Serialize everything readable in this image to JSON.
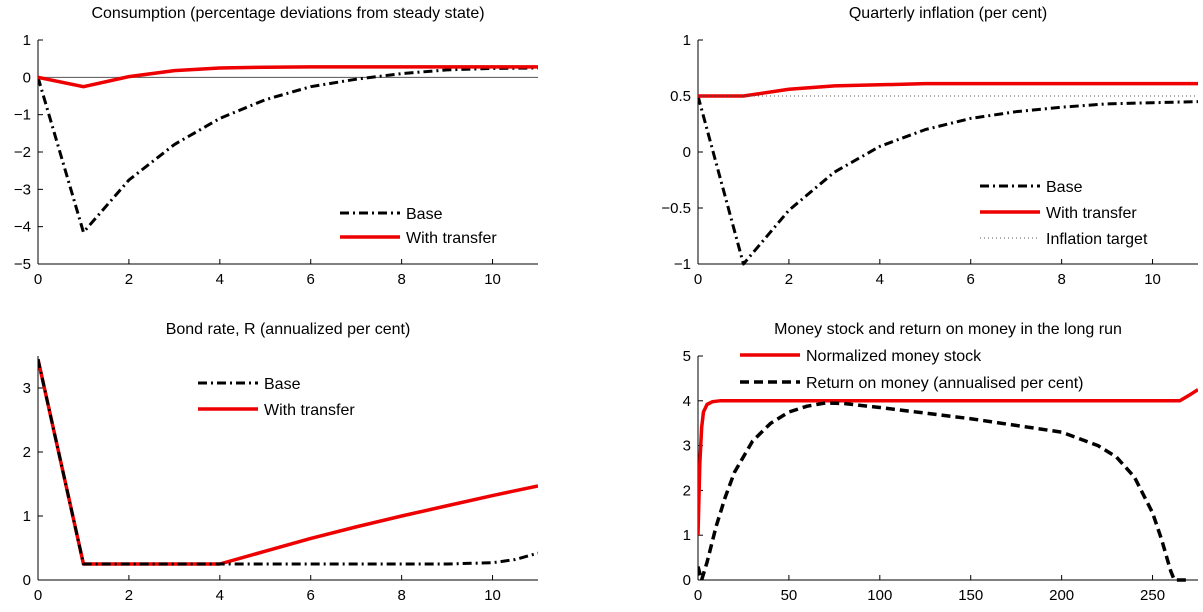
{
  "chart_data": [
    {
      "type": "line",
      "title": "Consumption (percentage deviations from steady state)",
      "xlim": [
        0,
        11
      ],
      "ylim": [
        -5,
        1
      ],
      "xticks": [
        0,
        2,
        4,
        6,
        8,
        10
      ],
      "yticks": [
        -5,
        -4,
        -3,
        -2,
        -1,
        0,
        1
      ],
      "zero_line": true,
      "legend": {
        "location": "lower-right"
      },
      "series": [
        {
          "name": "Base",
          "color": "#000000",
          "style": "dashdot",
          "x": [
            0,
            1,
            2,
            3,
            4,
            5,
            6,
            7,
            8,
            9,
            10,
            11
          ],
          "y": [
            0,
            -4.15,
            -2.75,
            -1.8,
            -1.1,
            -0.6,
            -0.25,
            -0.05,
            0.1,
            0.2,
            0.24,
            0.25
          ]
        },
        {
          "name": "With transfer",
          "color": "#ee0000",
          "style": "solid",
          "x": [
            0,
            1,
            2,
            3,
            4,
            5,
            6,
            7,
            8,
            9,
            10,
            11
          ],
          "y": [
            0,
            -0.25,
            0.02,
            0.18,
            0.25,
            0.27,
            0.28,
            0.28,
            0.28,
            0.28,
            0.28,
            0.28
          ]
        }
      ]
    },
    {
      "type": "line",
      "title": "Quarterly inflation (per cent)",
      "xlim": [
        0,
        11
      ],
      "ylim": [
        -1,
        1
      ],
      "xticks": [
        0,
        2,
        4,
        6,
        8,
        10
      ],
      "yticks": [
        -1,
        -0.5,
        0,
        0.5,
        1
      ],
      "ytick_labels": [
        "−1",
        "−0.5",
        "0",
        "0.5",
        "1"
      ],
      "legend": {
        "location": "lower-right"
      },
      "series": [
        {
          "name": "Base",
          "color": "#000000",
          "style": "dashdot",
          "x": [
            0,
            1,
            2,
            3,
            4,
            5,
            6,
            7,
            8,
            9,
            10,
            11
          ],
          "y": [
            0.5,
            -1.0,
            -0.52,
            -0.18,
            0.05,
            0.2,
            0.3,
            0.36,
            0.4,
            0.43,
            0.44,
            0.45
          ]
        },
        {
          "name": "With transfer",
          "color": "#ee0000",
          "style": "solid",
          "x": [
            0,
            1,
            2,
            3,
            4,
            5,
            6,
            7,
            8,
            9,
            10,
            11
          ],
          "y": [
            0.5,
            0.5,
            0.56,
            0.59,
            0.6,
            0.61,
            0.61,
            0.61,
            0.61,
            0.61,
            0.61,
            0.61
          ]
        },
        {
          "name": "Inflation target",
          "color": "#555555",
          "style": "dotted",
          "x": [
            0,
            11
          ],
          "y": [
            0.5,
            0.5
          ]
        }
      ]
    },
    {
      "type": "line",
      "title": "Bond rate, R (annualized per cent)",
      "xlim": [
        0,
        11
      ],
      "ylim": [
        0,
        3.5
      ],
      "xticks": [
        0,
        2,
        4,
        6,
        8,
        10
      ],
      "yticks": [
        0,
        1,
        2,
        3
      ],
      "legend": {
        "location": "top-center"
      },
      "series": [
        {
          "name": "With transfer",
          "color": "#ee0000",
          "style": "solid",
          "x": [
            0,
            1,
            2,
            3,
            4,
            5,
            6,
            7,
            8,
            9,
            10,
            11
          ],
          "y": [
            3.45,
            0.25,
            0.25,
            0.25,
            0.25,
            0.45,
            0.65,
            0.83,
            1.0,
            1.16,
            1.32,
            1.47
          ]
        },
        {
          "name": "Base",
          "color": "#000000",
          "style": "dashdot",
          "x": [
            0,
            1,
            2,
            3,
            4,
            5,
            6,
            7,
            8,
            9,
            10,
            10.5,
            11
          ],
          "y": [
            3.45,
            0.25,
            0.25,
            0.25,
            0.25,
            0.25,
            0.25,
            0.25,
            0.25,
            0.25,
            0.27,
            0.32,
            0.42
          ]
        }
      ]
    },
    {
      "type": "line",
      "title": "Money stock and return on money in the long run",
      "xlim": [
        0,
        275
      ],
      "ylim": [
        0,
        5
      ],
      "xticks": [
        0,
        50,
        100,
        150,
        200,
        250
      ],
      "yticks": [
        0,
        1,
        2,
        3,
        4,
        5
      ],
      "legend": {
        "location": "top-center"
      },
      "series": [
        {
          "name": "Normalized money stock",
          "color": "#ee0000",
          "style": "solid",
          "x": [
            0,
            1,
            2,
            3,
            5,
            8,
            12,
            100,
            200,
            265,
            270,
            275
          ],
          "y": [
            1.0,
            2.6,
            3.4,
            3.75,
            3.92,
            3.98,
            4.0,
            4.0,
            4.0,
            4.0,
            4.12,
            4.25
          ]
        },
        {
          "name": "Return on money (annualised per cent)",
          "color": "#000000",
          "style": "dashed",
          "x": [
            0,
            2,
            5,
            10,
            15,
            20,
            30,
            40,
            50,
            60,
            70,
            80,
            100,
            150,
            200,
            220,
            230,
            240,
            250,
            255,
            260,
            262,
            265,
            270
          ],
          "y": [
            0.3,
            0.0,
            0.4,
            1.2,
            1.85,
            2.4,
            3.1,
            3.5,
            3.75,
            3.88,
            3.95,
            3.94,
            3.85,
            3.6,
            3.3,
            3.0,
            2.75,
            2.3,
            1.5,
            0.9,
            0.2,
            0.0,
            0.0,
            0.0
          ]
        }
      ]
    }
  ]
}
